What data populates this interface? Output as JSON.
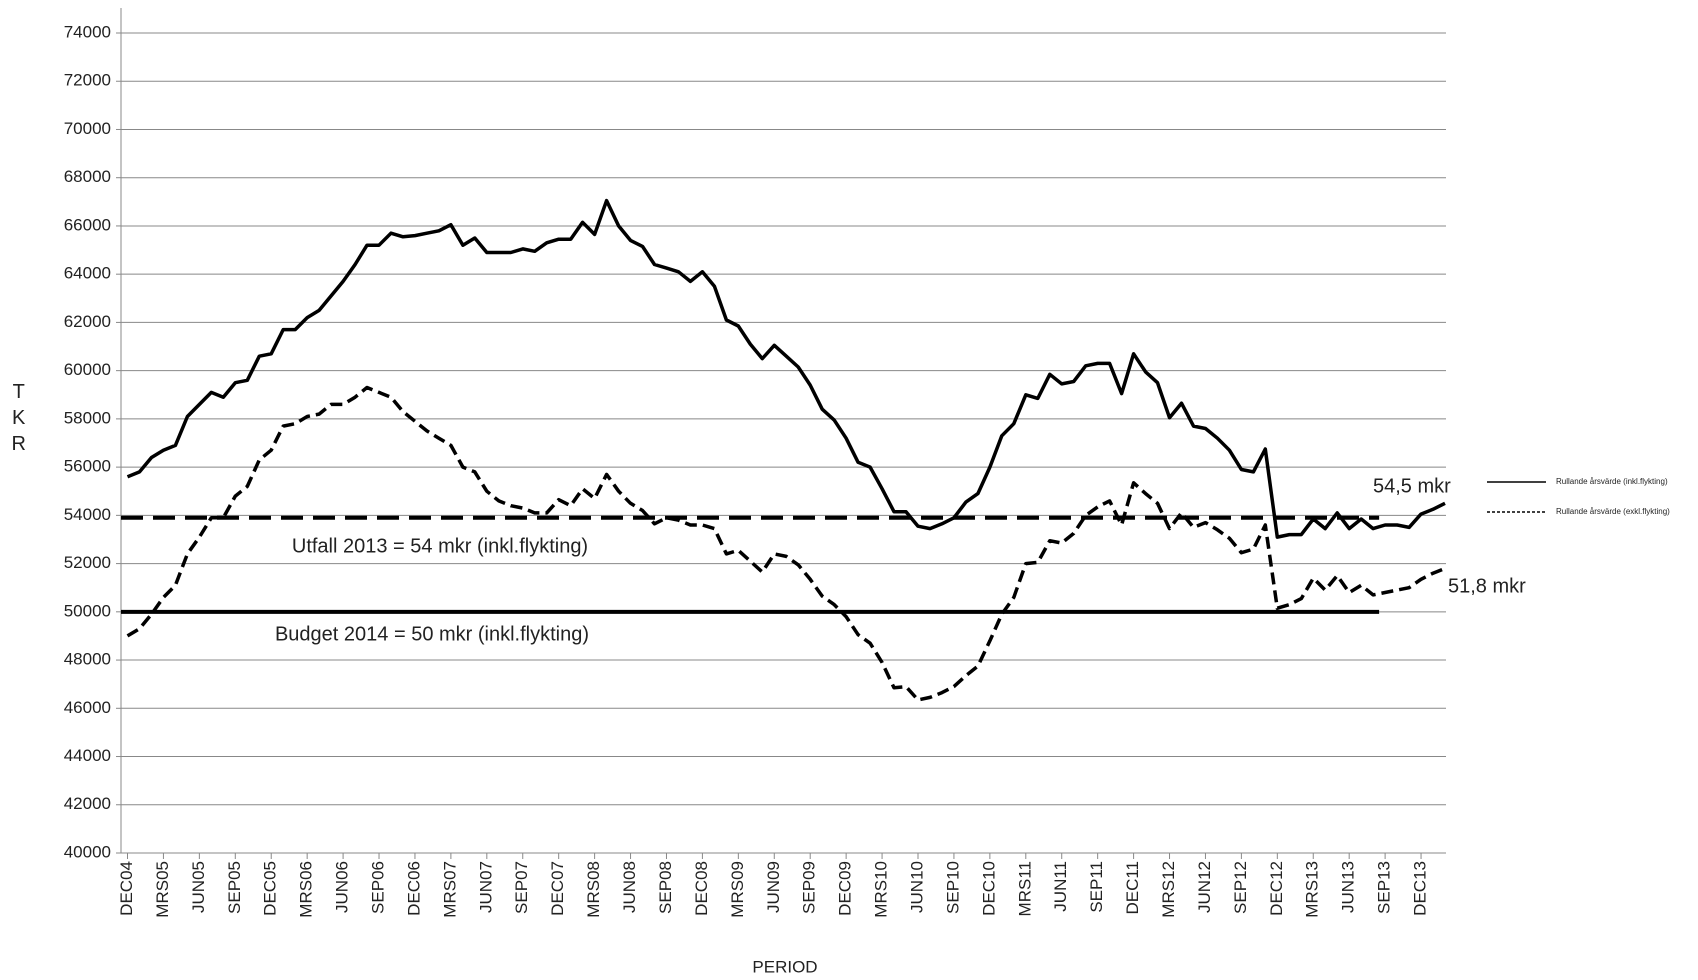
{
  "chart_data": {
    "type": "line",
    "y_label": "TKR",
    "x_label": "PERIOD",
    "categories": [
      "DEC04",
      null,
      null,
      "MRS05",
      null,
      null,
      "JUN05",
      null,
      null,
      "SEP05",
      null,
      null,
      "DEC05",
      null,
      null,
      "MRS06",
      null,
      null,
      "JUN06",
      null,
      null,
      "SEP06",
      null,
      null,
      "DEC06",
      null,
      null,
      "MRS07",
      null,
      null,
      "JUN07",
      null,
      null,
      "SEP07",
      null,
      null,
      "DEC07",
      null,
      null,
      "MRS08",
      null,
      null,
      "JUN08",
      null,
      null,
      "SEP08",
      null,
      null,
      "DEC08",
      null,
      null,
      "MRS09",
      null,
      null,
      "JUN09",
      null,
      null,
      "SEP09",
      null,
      null,
      "DEC09",
      null,
      null,
      "MRS10",
      null,
      null,
      "JUN10",
      null,
      null,
      "SEP10",
      null,
      null,
      "DEC10",
      null,
      null,
      "MRS11",
      null,
      null,
      "JUN11",
      null,
      null,
      "SEP11",
      null,
      null,
      "DEC11",
      null,
      null,
      "MRS12",
      null,
      null,
      "JUN12",
      null,
      null,
      "SEP12",
      null,
      null,
      "DEC12",
      null,
      null,
      "MRS13",
      null,
      null,
      "JUN13",
      null,
      null,
      "SEP13",
      null,
      null,
      "DEC13",
      null,
      null
    ],
    "series": [
      {
        "name": "Rullande årsvärde (inkl.flykting)",
        "color": "#000000",
        "dash": "solid",
        "values": [
          55600,
          55800,
          56400,
          56700,
          56900,
          58100,
          58600,
          59100,
          58900,
          59500,
          59600,
          60600,
          60700,
          61700,
          61700,
          62200,
          62500,
          63100,
          63700,
          64400,
          65200,
          65200,
          65700,
          65550,
          65600,
          65700,
          65800,
          66050,
          65200,
          65500,
          64900,
          64900,
          64900,
          65050,
          64950,
          65300,
          65450,
          65450,
          66150,
          65650,
          67050,
          66000,
          65400,
          65150,
          64400,
          64250,
          64100,
          63700,
          64100,
          63500,
          62100,
          61850,
          61100,
          60500,
          61050,
          60600,
          60150,
          59400,
          58400,
          57950,
          57200,
          56200,
          56000,
          55100,
          54150,
          54150,
          53550,
          53450,
          53650,
          53900,
          54550,
          54900,
          56000,
          57300,
          57800,
          59000,
          58850,
          59850,
          59450,
          59550,
          60200,
          60300,
          60300,
          59050,
          60700,
          59950,
          59500,
          58050,
          58650,
          57700,
          57600,
          57200,
          56700,
          55900,
          55800,
          56750,
          53100,
          53200,
          53200,
          53850,
          53450,
          54100,
          53450,
          53850,
          53450,
          53600,
          53600,
          53500,
          54050,
          54250,
          54500
        ]
      },
      {
        "name": "Rullande årsvärde (exkl.flykting)",
        "color": "#000000",
        "dash": "dashed",
        "values": [
          49000,
          49300,
          49900,
          50600,
          51100,
          52400,
          53100,
          53900,
          53900,
          54800,
          55200,
          56300,
          56700,
          57700,
          57800,
          58100,
          58200,
          58600,
          58600,
          58900,
          59300,
          59100,
          58900,
          58300,
          57900,
          57500,
          57200,
          56900,
          56000,
          55800,
          55000,
          54600,
          54400,
          54300,
          54100,
          54100,
          54650,
          54400,
          55100,
          54700,
          55700,
          55000,
          54500,
          54200,
          53650,
          53900,
          53800,
          53600,
          53600,
          53450,
          52400,
          52550,
          52100,
          51650,
          52400,
          52300,
          51950,
          51350,
          50650,
          50300,
          49800,
          49050,
          48700,
          47900,
          46850,
          46900,
          46350,
          46450,
          46650,
          46900,
          47350,
          47750,
          48800,
          49900,
          50600,
          52000,
          52050,
          52950,
          52850,
          53250,
          54000,
          54350,
          54600,
          53600,
          55350,
          54900,
          54500,
          53450,
          54100,
          53500,
          53700,
          53400,
          53050,
          52450,
          52600,
          53600,
          50150,
          50300,
          50550,
          51400,
          50900,
          51500,
          50800,
          51100,
          50700,
          50800,
          50900,
          51000,
          51350,
          51600,
          51800
        ]
      }
    ],
    "reference_lines": [
      {
        "value": 53900,
        "label": "Utfall 2013 = 54 mkr (inkl.flykting)",
        "dash": "dashed"
      },
      {
        "value": 50000,
        "label": "Budget 2014 = 50 mkr (inkl.flykting)",
        "dash": "solid"
      }
    ],
    "annotations": [
      "54,5 mkr",
      "51,8 mkr"
    ],
    "ylim": [
      40000,
      74000
    ],
    "yticks": [
      40000,
      42000,
      44000,
      46000,
      48000,
      50000,
      52000,
      54000,
      56000,
      58000,
      60000,
      62000,
      64000,
      66000,
      68000,
      70000,
      72000,
      74000
    ],
    "grid": true,
    "legend": "right"
  }
}
